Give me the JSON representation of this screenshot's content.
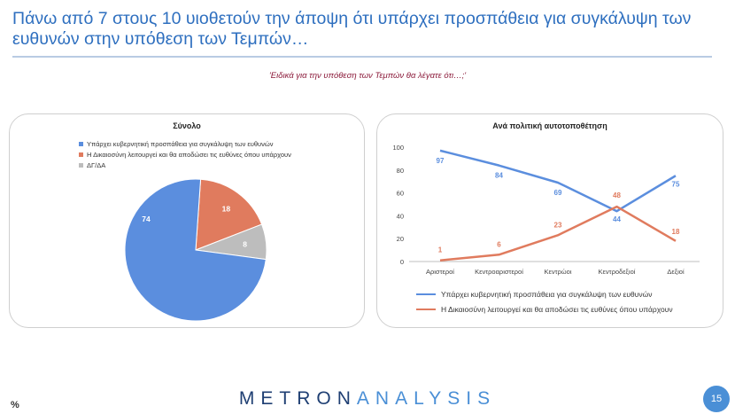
{
  "title": "Πάνω από 7 στους 10 υιοθετούν την άποψη ότι υπάρχει προσπάθεια για συγκάλυψη των ευθυνών στην υπόθεση των Τεμπών…",
  "subtitle": "'Ειδικά για την υπόθεση  των Τεμπών θα λέγατε ότι…;'",
  "percent_label": "%",
  "page_number": "15",
  "logo": {
    "part1": "METRON",
    "part2": "ANALYSIS"
  },
  "colors": {
    "blue": "#5b8ede",
    "orange": "#e07b5e",
    "grey": "#bdbdbd",
    "title": "#2e6fbf"
  },
  "legend": {
    "left": [
      "Υπάρχει κυβερνητική προσπάθεια για συγκάλυψη των ευθυνών",
      "Η Δικαιοσύνη λειτουργεί και θα αποδώσει τις ευθύνες όπου υπάρχουν",
      "ΔΓ/ΔΑ"
    ],
    "right": [
      "Υπάρχει κυβερνητική προσπάθεια για συγκάλυψη των ευθυνών",
      "Η Δικαιοσύνη λειτουργεί και θα αποδώσει τις ευθύνες όπου υπάρχουν"
    ]
  },
  "chart_data": [
    {
      "type": "pie",
      "title": "Σύνολο",
      "categories": [
        "Υπάρχει κυβερνητική προσπάθεια για συγκάλυψη των ευθυνών",
        "Η Δικαιοσύνη λειτουργεί και θα αποδώσει τις ευθύνες όπου υπάρχουν",
        "ΔΓ/ΔΑ"
      ],
      "values": [
        74,
        18,
        8
      ],
      "colors": [
        "#5b8ede",
        "#e07b5e",
        "#bdbdbd"
      ],
      "legend_position": "top-left"
    },
    {
      "type": "line",
      "title": "Ανά πολιτική αυτοτοποθέτηση",
      "categories": [
        "Αριστεροί",
        "Κεντροαριστεροί",
        "Κεντρώοι",
        "Κεντροδεξιοί",
        "Δεξιοί"
      ],
      "series": [
        {
          "name": "Υπάρχει κυβερνητική προσπάθεια για συγκάλυψη των ευθυνών",
          "values": [
            97,
            84,
            69,
            44,
            75
          ],
          "color": "#5b8ede"
        },
        {
          "name": "Η Δικαιοσύνη λειτουργεί και θα αποδώσει τις ευθύνες όπου υπάρχουν",
          "values": [
            1,
            6,
            23,
            48,
            18
          ],
          "color": "#e07b5e"
        }
      ],
      "ylim": [
        0,
        100
      ],
      "yticks": [
        0,
        20,
        40,
        60,
        80,
        100
      ],
      "grid": false,
      "legend_position": "bottom"
    }
  ]
}
